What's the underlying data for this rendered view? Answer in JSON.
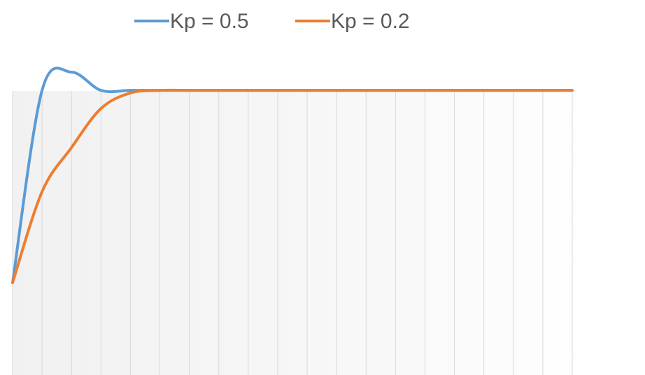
{
  "chart_data": {
    "type": "line",
    "title": "",
    "xlabel": "",
    "ylabel": "",
    "x": [
      0,
      1,
      2,
      3,
      4,
      5,
      6,
      7,
      8,
      9,
      10,
      11,
      12,
      13,
      14,
      15,
      16,
      17,
      18,
      19
    ],
    "ylim": [
      0,
      1.4
    ],
    "grid": {
      "vertical": true,
      "horizontal": false
    },
    "legend": {
      "placement": "top"
    },
    "series": [
      {
        "name": "Kp = 0.5",
        "color": "#5B9BD5",
        "values": [
          0.35,
          1.09,
          1.16,
          1.09,
          1.09,
          1.09,
          1.09,
          1.09,
          1.09,
          1.09,
          1.09,
          1.09,
          1.09,
          1.09,
          1.09,
          1.09,
          1.09,
          1.09,
          1.09,
          1.09
        ]
      },
      {
        "name": "Kp = 0.2",
        "color": "#ED7D31",
        "values": [
          0.35,
          0.7,
          0.87,
          1.02,
          1.08,
          1.09,
          1.09,
          1.09,
          1.09,
          1.09,
          1.09,
          1.09,
          1.09,
          1.09,
          1.09,
          1.09,
          1.09,
          1.09,
          1.09,
          1.09
        ]
      }
    ]
  }
}
